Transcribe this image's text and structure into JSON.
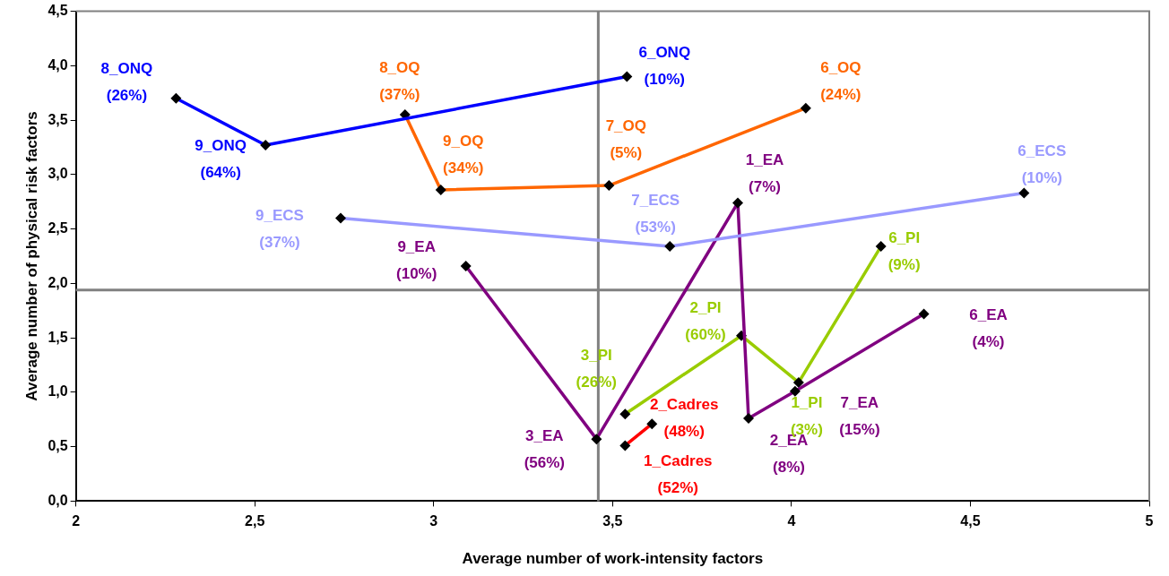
{
  "chart_data": {
    "type": "line",
    "xlabel": "Average number of work-intensity factors",
    "ylabel": "Average number of physical risk factors",
    "xlim": [
      2,
      5
    ],
    "xticks": [
      {
        "value": 2,
        "label": "2"
      },
      {
        "value": 2.5,
        "label": "2,5"
      },
      {
        "value": 3,
        "label": "3"
      },
      {
        "value": 3.5,
        "label": "3,5"
      },
      {
        "value": 4,
        "label": "4"
      },
      {
        "value": 4.5,
        "label": "4,5"
      },
      {
        "value": 5,
        "label": "5"
      }
    ],
    "ylim": [
      0,
      4.5
    ],
    "yticks": [
      {
        "value": 0,
        "label": "0,0"
      },
      {
        "value": 0.5,
        "label": "0,5"
      },
      {
        "value": 1,
        "label": "1,0"
      },
      {
        "value": 1.5,
        "label": "1,5"
      },
      {
        "value": 2,
        "label": "2,0"
      },
      {
        "value": 2.5,
        "label": "2,5"
      },
      {
        "value": 3,
        "label": "3,0"
      },
      {
        "value": 3.5,
        "label": "3,5"
      },
      {
        "value": 4,
        "label": "4,0"
      },
      {
        "value": 4.5,
        "label": "4,5"
      }
    ],
    "grid": false,
    "legend": false,
    "marker": "diamond",
    "line_style": "solid",
    "ref_lines": [
      {
        "axis": "x",
        "value": 3.46,
        "color": "#808080"
      },
      {
        "axis": "y",
        "value": 1.94,
        "color": "#808080"
      }
    ],
    "series": [
      {
        "color": "#0000ff",
        "x": [
          2.28,
          2.53,
          3.54
        ],
        "values": [
          3.7,
          3.27,
          3.9
        ]
      },
      {
        "color": "#ff6600",
        "x": [
          2.92,
          3.02,
          3.49,
          4.04
        ],
        "values": [
          3.55,
          2.86,
          2.9,
          3.61
        ]
      },
      {
        "color": "#9999ff",
        "x": [
          2.74,
          3.66,
          4.65
        ],
        "values": [
          2.6,
          2.34,
          2.83
        ]
      },
      {
        "color": "#800080",
        "x": [
          3.09,
          3.455,
          3.85,
          3.88,
          4.01,
          4.37
        ],
        "values": [
          2.16,
          0.57,
          2.74,
          0.76,
          1.01,
          1.72
        ]
      },
      {
        "color": "#99cc00",
        "x": [
          3.535,
          3.86,
          4.02,
          4.25
        ],
        "values": [
          0.8,
          1.52,
          1.09,
          2.34
        ]
      },
      {
        "color": "#ff0000",
        "x": [
          3.535,
          3.61
        ],
        "values": [
          0.51,
          0.71
        ]
      }
    ],
    "annotations": [
      {
        "text": "8_ONQ (26%)",
        "x": 2.28,
        "y": 3.7
      },
      {
        "text": "9_ONQ (64%)",
        "x": 2.53,
        "y": 3.27
      },
      {
        "text": "6_ONQ (10%)",
        "x": 3.54,
        "y": 3.9
      },
      {
        "text": "8_OQ (37%)",
        "x": 2.92,
        "y": 3.55
      },
      {
        "text": "9_OQ (34%)",
        "x": 3.02,
        "y": 2.86
      },
      {
        "text": "7_OQ (5%)",
        "x": 3.49,
        "y": 2.9
      },
      {
        "text": "6_OQ (24%)",
        "x": 4.04,
        "y": 3.61
      },
      {
        "text": "9_ECS (37%)",
        "x": 2.74,
        "y": 2.6
      },
      {
        "text": "7_ECS (53%)",
        "x": 3.66,
        "y": 2.34
      },
      {
        "text": "6_ECS (10%)",
        "x": 4.65,
        "y": 2.83
      },
      {
        "text": "9_EA (10%)",
        "x": 3.09,
        "y": 2.16
      },
      {
        "text": "3_EA (56%)",
        "x": 3.455,
        "y": 0.57
      },
      {
        "text": "1_EA (7%)",
        "x": 3.85,
        "y": 2.74
      },
      {
        "text": "2_EA (8%)",
        "x": 3.88,
        "y": 0.76
      },
      {
        "text": "7_EA (15%)",
        "x": 4.01,
        "y": 1.01
      },
      {
        "text": "6_EA (4%)",
        "x": 4.37,
        "y": 1.72
      },
      {
        "text": "3_PI (26%)",
        "x": 3.535,
        "y": 0.8
      },
      {
        "text": "2_PI (60%)",
        "x": 3.86,
        "y": 1.52
      },
      {
        "text": "1_PI (3%)",
        "x": 4.02,
        "y": 1.09
      },
      {
        "text": "6_PI (9%)",
        "x": 4.25,
        "y": 2.34
      },
      {
        "text": "1_Cadres (52%)",
        "x": 3.535,
        "y": 0.51
      },
      {
        "text": "2_Cadres (48%)",
        "x": 3.61,
        "y": 0.71
      }
    ]
  }
}
